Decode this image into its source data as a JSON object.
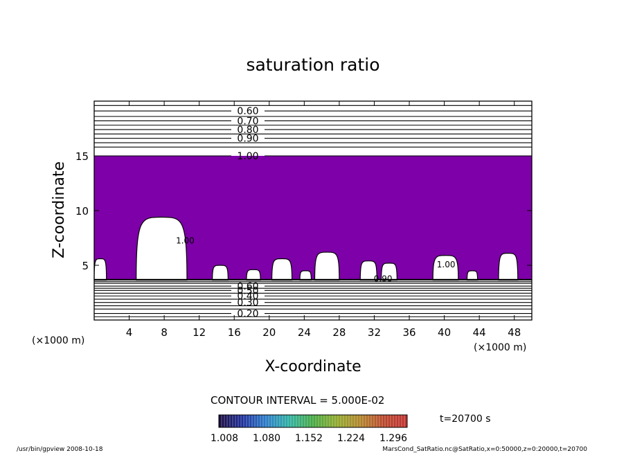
{
  "chart_data": {
    "type": "contour",
    "title": "saturation ratio",
    "xlabel": "X-coordinate",
    "ylabel": "Z-coordinate",
    "x_unit_label": "(×1000 m)",
    "y_unit_label": "(×1000 m)",
    "xlim": [
      0,
      50
    ],
    "ylim": [
      0,
      20
    ],
    "x_ticks": [
      4,
      8,
      12,
      16,
      20,
      24,
      28,
      32,
      36,
      40,
      44,
      48
    ],
    "y_ticks": [
      5,
      10,
      15
    ],
    "upper_contours": [
      {
        "level": 0.6,
        "label": "0.60",
        "z": 19.1
      },
      {
        "level": 0.7,
        "label": "0.70",
        "z": 18.2
      },
      {
        "level": 0.8,
        "label": "0.80",
        "z": 17.4
      },
      {
        "level": 0.9,
        "label": "0.90",
        "z": 16.6
      },
      {
        "level": 1.0,
        "label": "1.00",
        "z": 15.0
      }
    ],
    "upper_unlabeled_z": [
      19.6,
      18.6,
      17.8,
      17.0,
      16.2,
      15.8
    ],
    "lower_contours": [
      {
        "level": 0.2,
        "label": "0.20",
        "z": 0.6
      },
      {
        "level": 0.3,
        "label": "0.30",
        "z": 1.6
      },
      {
        "level": 0.4,
        "label": "0.40",
        "z": 2.2
      },
      {
        "level": 0.5,
        "label": "0.50",
        "z": 2.7
      },
      {
        "level": 0.6,
        "label": "0.60",
        "z": 3.1
      }
    ],
    "lower_unlabeled_z": [
      0.3,
      1.0,
      1.3,
      1.9,
      2.45,
      2.9,
      3.35,
      3.5,
      3.65
    ],
    "filled_region": {
      "min_value": 1.008,
      "z_range": [
        3.7,
        15.0
      ],
      "color": "#7d00a8"
    },
    "white_lobes": [
      {
        "x0": 4.8,
        "x1": 10.6,
        "top": 9.4
      },
      {
        "x0": 0.0,
        "x1": 1.4,
        "top": 5.6
      },
      {
        "x0": 13.5,
        "x1": 15.3,
        "top": 5.0
      },
      {
        "x0": 20.3,
        "x1": 22.6,
        "top": 5.6
      },
      {
        "x0": 25.2,
        "x1": 28.0,
        "top": 6.2
      },
      {
        "x0": 30.4,
        "x1": 32.3,
        "top": 5.4
      },
      {
        "x0": 32.8,
        "x1": 34.6,
        "top": 5.2
      },
      {
        "x0": 38.7,
        "x1": 41.6,
        "top": 5.9
      },
      {
        "x0": 46.2,
        "x1": 48.4,
        "top": 6.1
      },
      {
        "x0": 17.4,
        "x1": 19.0,
        "top": 4.6
      },
      {
        "x0": 23.5,
        "x1": 24.8,
        "top": 4.5
      },
      {
        "x0": 42.6,
        "x1": 43.8,
        "top": 4.5
      }
    ],
    "inline_labels": [
      {
        "text": "1.00",
        "x": 10.4,
        "z": 7.0
      },
      {
        "text": "1.00",
        "x": 40.2,
        "z": 4.8
      },
      {
        "text": "0.90",
        "x": 33.0,
        "z": 3.5
      }
    ],
    "colorbar": {
      "ticks": [
        "1.008",
        "1.080",
        "1.152",
        "1.224",
        "1.296"
      ],
      "colors": [
        "#1a0a3c",
        "#1e2f9a",
        "#2a7bc8",
        "#2fb0a0",
        "#45a842",
        "#8fa82c",
        "#b0842a",
        "#b8462a",
        "#c03030"
      ]
    },
    "contour_interval_text": "CONTOUR INTERVAL = 5.000E-02",
    "time_text": "t=20700  s",
    "footer_left": "/usr/bin/gpview   2008-10-18",
    "footer_right": "MarsCond_SatRatio.nc@SatRatio,x=0:50000,z=0:20000,t=20700",
    "colors": {
      "fill": "#7d00a8",
      "line": "#000000",
      "background": "#ffffff"
    }
  }
}
